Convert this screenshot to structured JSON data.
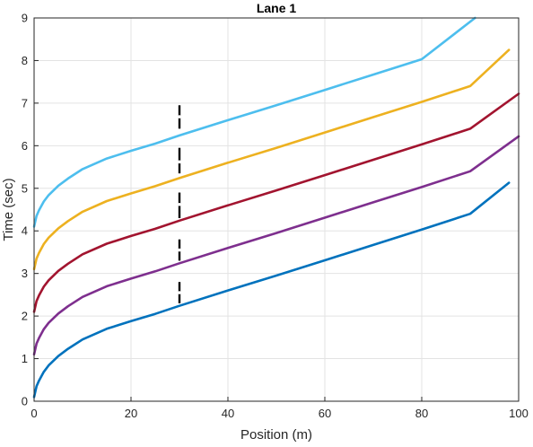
{
  "chart_data": {
    "type": "line",
    "title": "Lane 1",
    "xlabel": "Position (m)",
    "ylabel": "Time (sec)",
    "xlim": [
      0,
      100
    ],
    "ylim": [
      0,
      9
    ],
    "xticks": [
      "0",
      "20",
      "40",
      "60",
      "80",
      "100"
    ],
    "yticks": [
      "0",
      "1",
      "2",
      "3",
      "4",
      "5",
      "6",
      "7",
      "8",
      "9"
    ],
    "grid": true,
    "series": [
      {
        "color": "#0072BD",
        "x": [
          0,
          0.5,
          1,
          2,
          3,
          5,
          7,
          10,
          15,
          20,
          25,
          30,
          40,
          50,
          60,
          70,
          80,
          90,
          98
        ],
        "y": [
          0.1,
          0.35,
          0.48,
          0.69,
          0.84,
          1.06,
          1.23,
          1.45,
          1.7,
          1.88,
          2.05,
          2.24,
          2.6,
          2.95,
          3.31,
          3.67,
          4.03,
          4.4,
          5.13
        ]
      },
      {
        "color": "#7E2F8E",
        "x": [
          0,
          0.5,
          1,
          2,
          3,
          5,
          7,
          10,
          15,
          20,
          25,
          30,
          40,
          50,
          60,
          70,
          80,
          90,
          100
        ],
        "y": [
          1.1,
          1.35,
          1.48,
          1.69,
          1.84,
          2.06,
          2.23,
          2.45,
          2.7,
          2.88,
          3.05,
          3.24,
          3.6,
          3.95,
          4.31,
          4.67,
          5.03,
          5.4,
          6.22
        ]
      },
      {
        "color": "#A2142F",
        "x": [
          0,
          0.5,
          1,
          2,
          3,
          5,
          7,
          10,
          15,
          20,
          25,
          30,
          40,
          50,
          60,
          70,
          80,
          90,
          100
        ],
        "y": [
          2.1,
          2.35,
          2.48,
          2.69,
          2.84,
          3.06,
          3.23,
          3.45,
          3.7,
          3.88,
          4.05,
          4.24,
          4.6,
          4.95,
          5.31,
          5.67,
          6.03,
          6.4,
          7.22
        ]
      },
      {
        "color": "#EDB120",
        "x": [
          0,
          0.5,
          1,
          2,
          3,
          5,
          7,
          10,
          15,
          20,
          25,
          30,
          40,
          50,
          60,
          70,
          80,
          90,
          98
        ],
        "y": [
          3.1,
          3.35,
          3.48,
          3.69,
          3.84,
          4.06,
          4.23,
          4.45,
          4.7,
          4.88,
          5.05,
          5.24,
          5.6,
          5.95,
          6.31,
          6.67,
          7.03,
          7.4,
          8.25
        ]
      },
      {
        "color": "#4DBEEE",
        "x": [
          0,
          0.5,
          1,
          2,
          3,
          5,
          7,
          10,
          15,
          20,
          25,
          30,
          40,
          50,
          60,
          70,
          80,
          91
        ],
        "y": [
          4.1,
          4.35,
          4.48,
          4.69,
          4.84,
          5.06,
          5.23,
          5.45,
          5.7,
          5.88,
          6.05,
          6.24,
          6.6,
          6.95,
          7.31,
          7.67,
          8.03,
          9.0
        ]
      }
    ],
    "markers": [
      {
        "x": 30,
        "y_low": 2.3,
        "y_high": 2.8,
        "y_mid": 2.55,
        "color": "#000000"
      },
      {
        "x": 30,
        "y_low": 3.3,
        "y_high": 3.8,
        "y_mid": 3.55,
        "color": "#000000"
      },
      {
        "x": 30,
        "y_low": 4.3,
        "y_high": 4.9,
        "y_mid": 4.62,
        "color": "#000000"
      },
      {
        "x": 30,
        "y_low": 5.35,
        "y_high": 5.95,
        "y_mid": 5.62,
        "color": "#000000"
      },
      {
        "x": 30,
        "y_low": 6.4,
        "y_high": 6.95,
        "y_mid": 6.68,
        "color": "#000000"
      }
    ]
  }
}
